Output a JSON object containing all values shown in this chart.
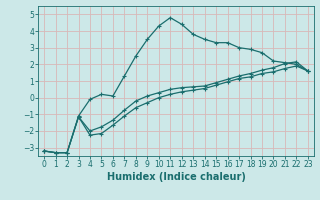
{
  "xlabel": "Humidex (Indice chaleur)",
  "x": [
    0,
    1,
    2,
    3,
    4,
    5,
    6,
    7,
    8,
    9,
    10,
    11,
    12,
    13,
    14,
    15,
    16,
    17,
    18,
    19,
    20,
    21,
    22,
    23
  ],
  "line1": [
    -3.2,
    -3.3,
    -3.3,
    -1.1,
    -0.1,
    0.2,
    0.1,
    1.3,
    2.5,
    3.5,
    4.3,
    4.8,
    4.4,
    3.8,
    3.5,
    3.3,
    3.3,
    3.0,
    2.9,
    2.7,
    2.2,
    2.1,
    2.0,
    1.6
  ],
  "line2": [
    -3.2,
    -3.3,
    -3.3,
    -1.15,
    -2.25,
    -2.15,
    -1.65,
    -1.1,
    -0.6,
    -0.3,
    0.0,
    0.2,
    0.35,
    0.45,
    0.55,
    0.75,
    0.95,
    1.15,
    1.25,
    1.45,
    1.55,
    1.75,
    1.9,
    1.6
  ],
  "line3": [
    -3.2,
    -3.3,
    -3.3,
    -1.15,
    -2.0,
    -1.75,
    -1.35,
    -0.75,
    -0.2,
    0.1,
    0.3,
    0.5,
    0.6,
    0.65,
    0.7,
    0.9,
    1.1,
    1.3,
    1.45,
    1.65,
    1.8,
    2.05,
    2.15,
    1.6
  ],
  "ylim": [
    -3.5,
    5.5
  ],
  "xlim": [
    -0.5,
    23.5
  ],
  "yticks": [
    -3,
    -2,
    -1,
    0,
    1,
    2,
    3,
    4,
    5
  ],
  "xticks": [
    0,
    1,
    2,
    3,
    4,
    5,
    6,
    7,
    8,
    9,
    10,
    11,
    12,
    13,
    14,
    15,
    16,
    17,
    18,
    19,
    20,
    21,
    22,
    23
  ],
  "line_color": "#1a6e6e",
  "bg_color": "#cce8e8",
  "grid_color": "#d8b8b8",
  "marker": "+",
  "marker_size": 3.5,
  "linewidth": 0.9,
  "xlabel_fontsize": 7,
  "tick_fontsize": 5.5
}
